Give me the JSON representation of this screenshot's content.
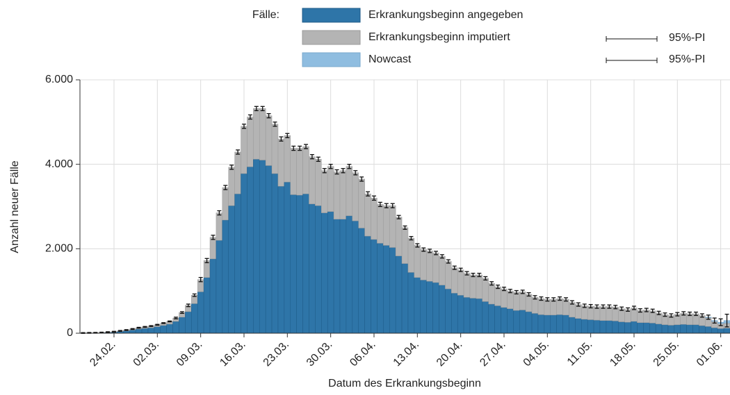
{
  "chart_data": {
    "type": "bar",
    "stacked": true,
    "x_label": "Datum des Erkrankungsbeginn",
    "y_label": "Anzahl neuer Fälle",
    "legend_title": "Fälle:",
    "pi_labels": [
      "95%-PI",
      "95%-PI"
    ],
    "categories": [
      null,
      null,
      null,
      null,
      null,
      "24.02.",
      null,
      null,
      null,
      null,
      null,
      null,
      "02.03.",
      null,
      null,
      null,
      null,
      null,
      null,
      "09.03.",
      null,
      null,
      null,
      null,
      null,
      null,
      "16.03.",
      null,
      null,
      null,
      null,
      null,
      null,
      "23.03.",
      null,
      null,
      null,
      null,
      null,
      null,
      "30.03.",
      null,
      null,
      null,
      null,
      null,
      null,
      "06.04.",
      null,
      null,
      null,
      null,
      null,
      null,
      "13.04.",
      null,
      null,
      null,
      null,
      null,
      null,
      "20.04.",
      null,
      null,
      null,
      null,
      null,
      null,
      "27.04.",
      null,
      null,
      null,
      null,
      null,
      null,
      "04.05.",
      null,
      null,
      null,
      null,
      null,
      null,
      "11.05.",
      null,
      null,
      null,
      null,
      null,
      null,
      "18.05.",
      null,
      null,
      null,
      null,
      null,
      null,
      "25.05.",
      null,
      null,
      null,
      null,
      null,
      null,
      "01.06.",
      null
    ],
    "series": [
      {
        "name": "Erkrankungsbeginn angegeben",
        "color": "#2e75a8",
        "values": [
          3,
          5,
          7,
          10,
          18,
          25,
          40,
          55,
          75,
          100,
          115,
          130,
          155,
          185,
          215,
          280,
          380,
          510,
          700,
          980,
          1320,
          1760,
          2200,
          2680,
          3020,
          3300,
          3780,
          3940,
          4120,
          4100,
          3970,
          3780,
          3480,
          3580,
          3280,
          3270,
          3300,
          3060,
          3020,
          2850,
          2880,
          2700,
          2700,
          2780,
          2660,
          2490,
          2300,
          2220,
          2130,
          2080,
          2030,
          1830,
          1650,
          1440,
          1320,
          1260,
          1230,
          1200,
          1140,
          1050,
          950,
          900,
          850,
          830,
          820,
          750,
          690,
          650,
          610,
          580,
          540,
          550,
          510,
          470,
          440,
          430,
          430,
          440,
          430,
          380,
          350,
          330,
          320,
          310,
          300,
          300,
          290,
          270,
          260,
          280,
          250,
          250,
          240,
          220,
          200,
          190,
          200,
          210,
          200,
          200,
          180,
          160,
          130,
          110,
          120
        ]
      },
      {
        "name": "Erkrankungsbeginn imputiert",
        "color": "#b4b4b4",
        "values": [
          2,
          3,
          3,
          5,
          7,
          10,
          15,
          20,
          25,
          30,
          35,
          40,
          45,
          55,
          65,
          80,
          110,
          150,
          200,
          290,
          400,
          510,
          650,
          770,
          910,
          990,
          1120,
          1180,
          1200,
          1220,
          1180,
          1170,
          1120,
          1100,
          1100,
          1110,
          1120,
          1120,
          1100,
          1000,
          1070,
          1120,
          1150,
          1170,
          1140,
          1160,
          1000,
          980,
          920,
          940,
          990,
          920,
          850,
          810,
          760,
          720,
          720,
          700,
          680,
          650,
          600,
          600,
          570,
          550,
          560,
          550,
          490,
          450,
          440,
          420,
          430,
          430,
          410,
          380,
          380,
          370,
          370,
          380,
          370,
          350,
          330,
          320,
          320,
          320,
          330,
          330,
          330,
          310,
          300,
          320,
          290,
          300,
          290,
          260,
          240,
          230,
          250,
          260,
          260,
          260,
          240,
          210,
          150,
          120,
          120
        ]
      },
      {
        "name": "Nowcast",
        "color": "#8fbde0",
        "values": [
          0,
          0,
          0,
          0,
          0,
          0,
          0,
          0,
          0,
          0,
          0,
          0,
          0,
          0,
          0,
          0,
          0,
          0,
          0,
          0,
          0,
          0,
          0,
          0,
          0,
          0,
          0,
          0,
          0,
          0,
          0,
          0,
          0,
          0,
          0,
          0,
          0,
          0,
          0,
          0,
          0,
          0,
          0,
          0,
          0,
          0,
          0,
          0,
          0,
          0,
          0,
          0,
          0,
          0,
          0,
          0,
          0,
          0,
          0,
          0,
          0,
          0,
          0,
          0,
          0,
          0,
          0,
          0,
          0,
          0,
          0,
          0,
          0,
          0,
          0,
          0,
          0,
          0,
          0,
          0,
          0,
          0,
          0,
          0,
          0,
          0,
          0,
          0,
          0,
          0,
          0,
          0,
          0,
          0,
          0,
          0,
          0,
          0,
          0,
          0,
          0,
          10,
          20,
          30,
          60
        ]
      }
    ],
    "errors": [
      10,
      10,
      10,
      10,
      10,
      10,
      10,
      10,
      10,
      10,
      10,
      10,
      10,
      10,
      10,
      20,
      20,
      30,
      30,
      50,
      50,
      50,
      50,
      50,
      50,
      50,
      50,
      50,
      50,
      50,
      50,
      50,
      50,
      50,
      50,
      50,
      50,
      50,
      50,
      50,
      50,
      50,
      50,
      50,
      50,
      50,
      50,
      50,
      50,
      50,
      50,
      40,
      40,
      40,
      40,
      40,
      40,
      40,
      40,
      40,
      40,
      40,
      40,
      40,
      40,
      40,
      40,
      40,
      40,
      40,
      40,
      40,
      40,
      40,
      40,
      40,
      40,
      40,
      40,
      40,
      40,
      40,
      40,
      40,
      40,
      40,
      40,
      40,
      40,
      40,
      40,
      40,
      40,
      40,
      40,
      40,
      40,
      40,
      40,
      40,
      40,
      50,
      60,
      80,
      150
    ],
    "ylim": [
      0,
      6000
    ],
    "yticks": [
      0,
      {
        "value": 2000,
        "label": "2.000"
      },
      {
        "value": 4000,
        "label": "4.000"
      },
      {
        "value": 6000,
        "label": "6.000"
      }
    ],
    "grid": true
  }
}
